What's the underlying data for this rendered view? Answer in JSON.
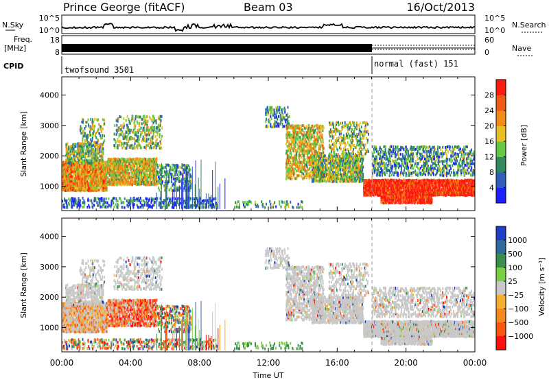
{
  "header": {
    "station": "Prince George (fitACF)",
    "beam": "Beam 03",
    "date": "16/Oct/2013"
  },
  "noise_panel": {
    "left_label": "N.Sky",
    "right_label": "N.Search",
    "left_ticks": [
      "10^5",
      "10^0"
    ],
    "right_ticks": [
      "10^5",
      "10^0"
    ]
  },
  "freq_panel": {
    "left_label_1": "Freq.",
    "left_label_2": "[MHz]",
    "right_label": "Nave",
    "left_ticks": [
      "18",
      "8"
    ],
    "right_ticks": [
      "60",
      "0"
    ]
  },
  "cpid_panel": {
    "label": "CPID",
    "programs": [
      {
        "name": "twofsound 3501",
        "start": "00:00"
      },
      {
        "name": "normal (fast) 151",
        "start": "18:00"
      }
    ]
  },
  "time_axis": {
    "label": "Time UT",
    "ticks": [
      "00:00",
      "04:00",
      "08:00",
      "12:00",
      "16:00",
      "20:00",
      "00:00"
    ],
    "range_hours": [
      0,
      24
    ]
  },
  "chart_data": [
    {
      "type": "heatmap",
      "name": "power",
      "ylabel": "Slant Range [km]",
      "yticks": [
        "1000",
        "2000",
        "3000",
        "4000"
      ],
      "ylim": [
        200,
        4600
      ],
      "colorbar": {
        "label": "Power [dB]",
        "ticks": [
          "4",
          "8",
          "12",
          "16",
          "20",
          "24",
          "28"
        ],
        "colors": [
          "#1f1fff",
          "#2f5fb8",
          "#2f8a5e",
          "#63c843",
          "#e8c023",
          "#f28c18",
          "#f05a14",
          "#ff1a10"
        ]
      }
    },
    {
      "type": "heatmap",
      "name": "velocity",
      "ylabel": "Slant Range [km]",
      "yticks": [
        "1000",
        "2000",
        "3000",
        "4000"
      ],
      "ylim": [
        200,
        4600
      ],
      "colorbar": {
        "label": "Velocity [m s⁻¹]",
        "ticks": [
          "1000",
          "500",
          "100",
          "25",
          "−25",
          "−100",
          "−500",
          "−1000"
        ],
        "colors": [
          "#1f3fc8",
          "#2f6aa0",
          "#3a8f4e",
          "#7ad044",
          "#c8c8c8",
          "#f4b02e",
          "#f48a1e",
          "#ff5514",
          "#ff0f0f"
        ]
      }
    }
  ]
}
